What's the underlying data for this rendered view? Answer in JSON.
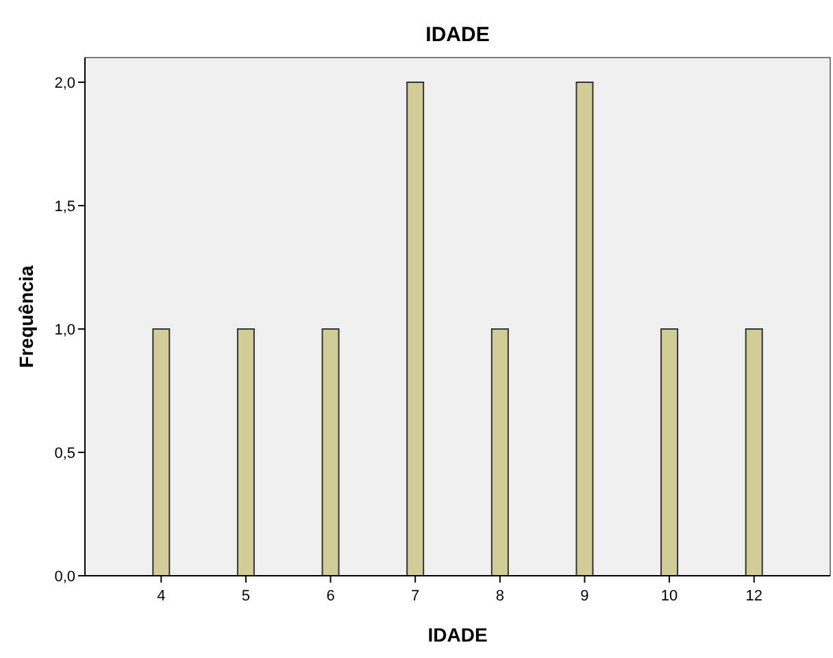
{
  "chart_data": {
    "type": "bar",
    "title": "IDADE",
    "xlabel": "IDADE",
    "ylabel": "Frequência",
    "categories": [
      "4",
      "5",
      "6",
      "7",
      "8",
      "9",
      "10",
      "12"
    ],
    "values": [
      1,
      1,
      1,
      2,
      1,
      2,
      1,
      1
    ],
    "color": "#d2cc96",
    "ylim": [
      0,
      2.1
    ],
    "yticks": [
      {
        "value": 0,
        "label": "0,0"
      },
      {
        "value": 0.5,
        "label": "0,5"
      },
      {
        "value": 1,
        "label": "1,0"
      },
      {
        "value": 1.5,
        "label": "1,5"
      },
      {
        "value": 2,
        "label": "2,0"
      }
    ],
    "grid": false
  }
}
